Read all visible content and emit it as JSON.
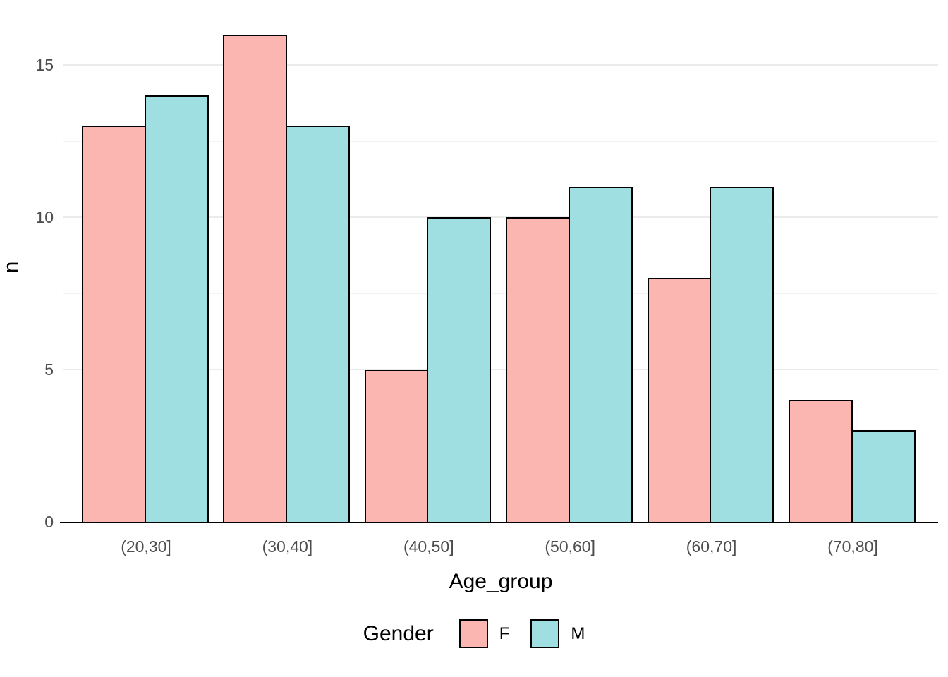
{
  "chart_data": {
    "type": "bar",
    "title": "",
    "categories": [
      "(20,30]",
      "(30,40]",
      "(40,50]",
      "(50,60]",
      "(60,70]",
      "(70,80]"
    ],
    "series": [
      {
        "name": "F",
        "color": "#FBB6B1",
        "values": [
          13,
          16,
          5,
          10,
          8,
          4
        ]
      },
      {
        "name": "M",
        "color": "#9FDFE1",
        "values": [
          14,
          13,
          10,
          11,
          11,
          3
        ]
      }
    ],
    "xlabel": "Age_group",
    "ylabel": "n",
    "ylim": [
      0,
      16.83
    ],
    "yticks": [
      0,
      5,
      10,
      15
    ],
    "minor_gridlines": [
      2.5,
      7.5,
      12.5
    ],
    "grid": true,
    "legend_title": "Gender",
    "legend_position": "bottom",
    "bar_layout": "dodge",
    "bar_border_color": "#000000",
    "colors": {
      "background": "#ffffff",
      "grid_major": "#EBEBEB",
      "grid_minor": "#F3F3F3",
      "axis_text": "#4D4D4D",
      "axis_line": "#000000",
      "series_F": "#FBB6B1",
      "series_M": "#9FDFE1"
    }
  }
}
